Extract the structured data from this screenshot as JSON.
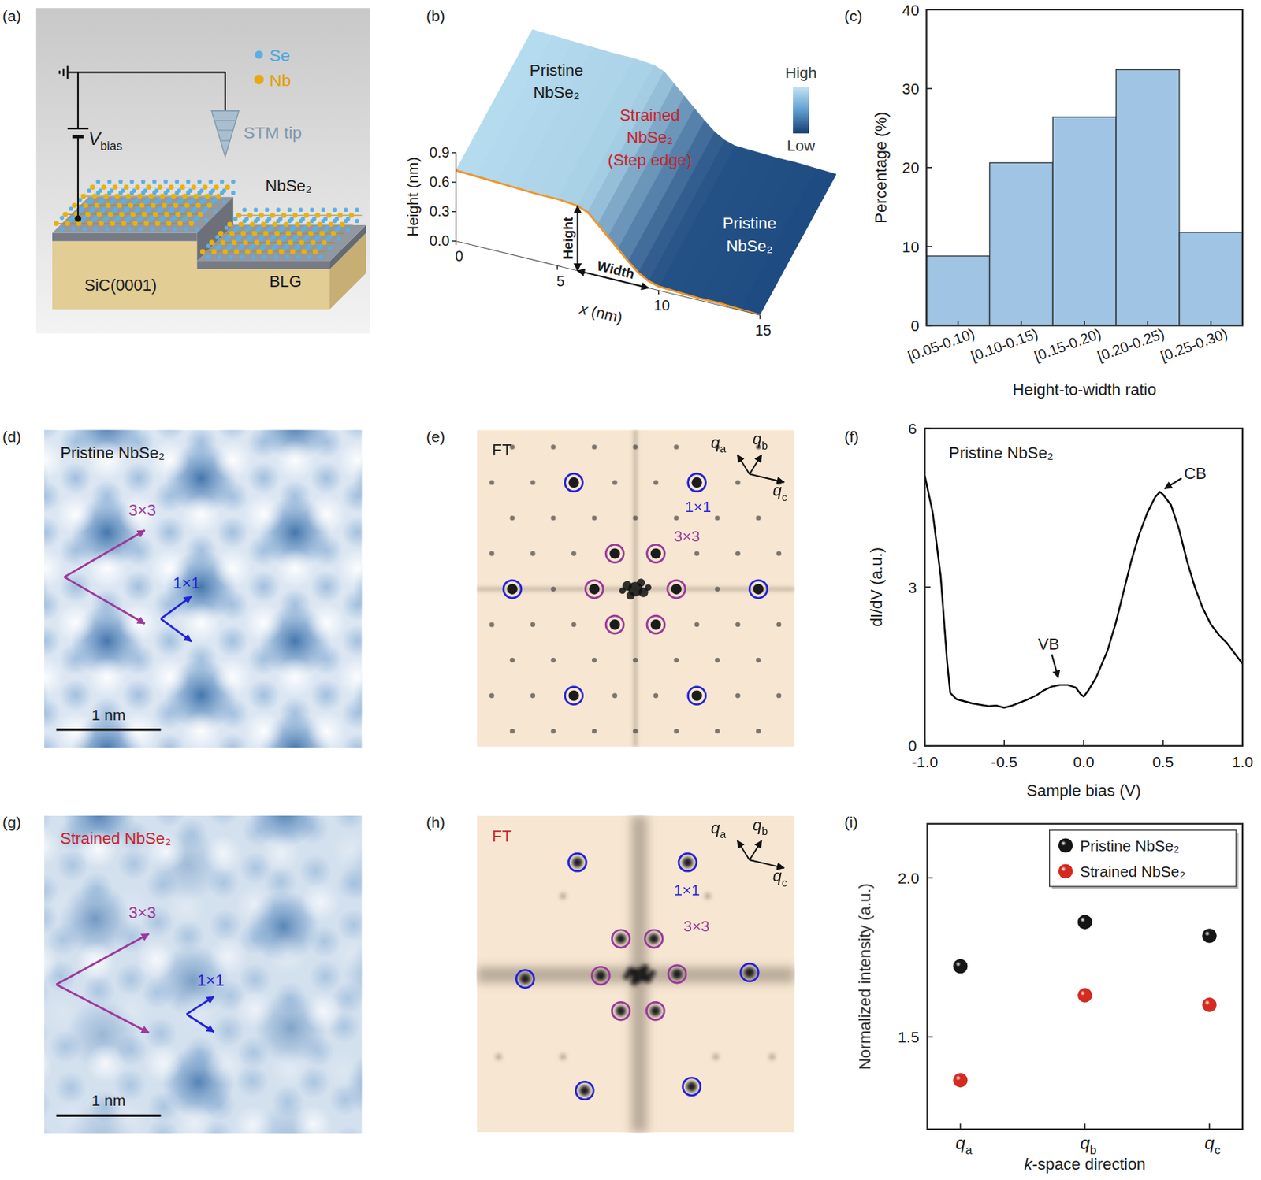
{
  "panel_letters": [
    "(a)",
    "(b)",
    "(c)",
    "(d)",
    "(e)",
    "(f)",
    "(g)",
    "(h)",
    "(i)"
  ],
  "panels": {
    "a": {
      "se": "Se",
      "nb": "Nb",
      "bias": "Vbias",
      "tip": "STM tip",
      "layer": "NbSe₂",
      "substrate": "SiC(0001)",
      "buffer": "BLG"
    },
    "b": {
      "top_label": [
        "Pristine",
        "NbSe₂"
      ],
      "edge_label": [
        "Strained",
        "NbSe₂",
        "(Step edge)"
      ],
      "bottom_label": [
        "Pristine",
        "NbSe₂"
      ],
      "colorbar_high": "High",
      "colorbar_low": "Low",
      "height_arrow": "Height",
      "width_arrow": "Width"
    },
    "d": {
      "title": "Pristine NbSe₂",
      "cdw": "3×3",
      "lattice": "1×1",
      "scale_bar": "1 nm"
    },
    "e": {
      "title": "FT",
      "lattice": "1×1",
      "cdw": "3×3",
      "q_axes": [
        "qa",
        "qb",
        "qc"
      ]
    },
    "g": {
      "title": "Strained NbSe₂",
      "cdw": "3×3",
      "lattice": "1×1",
      "scale_bar": "1 nm"
    },
    "h": {
      "title": "FT",
      "lattice": "1×1",
      "cdw": "3×3",
      "q_axes": [
        "qa",
        "qb",
        "qc"
      ]
    }
  },
  "chart_data": [
    {
      "type": "line",
      "x": [
        0,
        1,
        2,
        3,
        4,
        5,
        6,
        6.5,
        7,
        7.5,
        8,
        8.5,
        9,
        9.5,
        10,
        11,
        12,
        13,
        14,
        15
      ],
      "values": [
        0.72,
        0.71,
        0.7,
        0.69,
        0.68,
        0.68,
        0.66,
        0.62,
        0.52,
        0.42,
        0.32,
        0.22,
        0.13,
        0.07,
        0.04,
        0.03,
        0.02,
        0.02,
        0.01,
        0.0
      ],
      "xlim": [
        0,
        15
      ],
      "ylim": [
        0,
        0.9
      ],
      "xticks": [
        0,
        5,
        10,
        15
      ],
      "yticks": [
        {
          "value": 0,
          "label": "0.0"
        },
        0.3,
        0.6,
        0.9
      ],
      "x_label": "x (nm)",
      "y_label": "Height (nm)",
      "color": "#f0962c"
    },
    {
      "type": "bar",
      "categories": [
        "[0.05-0.10)",
        "[0.10-0.15)",
        "[0.15-0.20)",
        "[0.20-0.25)",
        "[0.25-0.30)"
      ],
      "values": [
        8.8,
        20.6,
        26.4,
        32.4,
        11.8
      ],
      "color": "#9fc4e4",
      "ylim": [
        0,
        40
      ],
      "yticks": [
        0,
        10,
        20,
        30,
        40
      ],
      "x_label": "Height-to-width ratio",
      "y_label": "Percentage (%)"
    },
    {
      "type": "line",
      "title": "Pristine NbSe₂",
      "x": [
        -1.0,
        -0.95,
        -0.9,
        -0.86,
        -0.84,
        -0.8,
        -0.7,
        -0.6,
        -0.55,
        -0.5,
        -0.45,
        -0.4,
        -0.35,
        -0.3,
        -0.25,
        -0.2,
        -0.15,
        -0.1,
        -0.05,
        -0.02,
        0.0,
        0.03,
        0.08,
        0.15,
        0.2,
        0.25,
        0.3,
        0.35,
        0.4,
        0.45,
        0.48,
        0.5,
        0.55,
        0.6,
        0.65,
        0.7,
        0.75,
        0.8,
        0.85,
        0.9,
        0.95,
        1.0
      ],
      "values": [
        5.1,
        4.4,
        3.2,
        1.6,
        1.0,
        0.88,
        0.8,
        0.75,
        0.76,
        0.72,
        0.76,
        0.82,
        0.88,
        0.95,
        1.05,
        1.12,
        1.15,
        1.15,
        1.1,
        0.98,
        0.93,
        1.05,
        1.3,
        1.8,
        2.3,
        2.9,
        3.5,
        4.0,
        4.4,
        4.7,
        4.8,
        4.75,
        4.55,
        4.1,
        3.5,
        3.0,
        2.6,
        2.3,
        2.1,
        1.95,
        1.75,
        1.55
      ],
      "xlim": [
        -1,
        1
      ],
      "ylim": [
        0,
        6
      ],
      "xticks": [
        {
          "value": -1,
          "label": "-1.0"
        },
        -0.5,
        {
          "value": 0,
          "label": "0.0"
        },
        0.5,
        {
          "value": 1,
          "label": "1.0"
        }
      ],
      "yticks": [
        0,
        3,
        6
      ],
      "x_label": "Sample bias (V)",
      "y_label": "dI/dV (a.u.)",
      "color": "#000000",
      "annotations": [
        {
          "text": "VB",
          "x": -0.15,
          "y": 1.15
        },
        {
          "text": "CB",
          "x": 0.48,
          "y": 4.8
        }
      ]
    },
    {
      "type": "scatter",
      "categories": [
        "qa",
        "qb",
        "qc"
      ],
      "marker": "circle",
      "legend": "upper right",
      "series": [
        {
          "name": "Pristine NbSe₂",
          "color": "#151515",
          "values": [
            1.722,
            1.861,
            1.818
          ]
        },
        {
          "name": "Strained NbSe₂",
          "color": "#d42a20",
          "values": [
            1.364,
            1.631,
            1.601
          ]
        }
      ],
      "ylim": [
        1.21,
        2.17
      ],
      "yticks": [
        1.5,
        {
          "value": 2,
          "label": "2.0"
        }
      ],
      "x_label": "k-space direction",
      "y_label": "Normalized intensity (a.u.)"
    }
  ]
}
